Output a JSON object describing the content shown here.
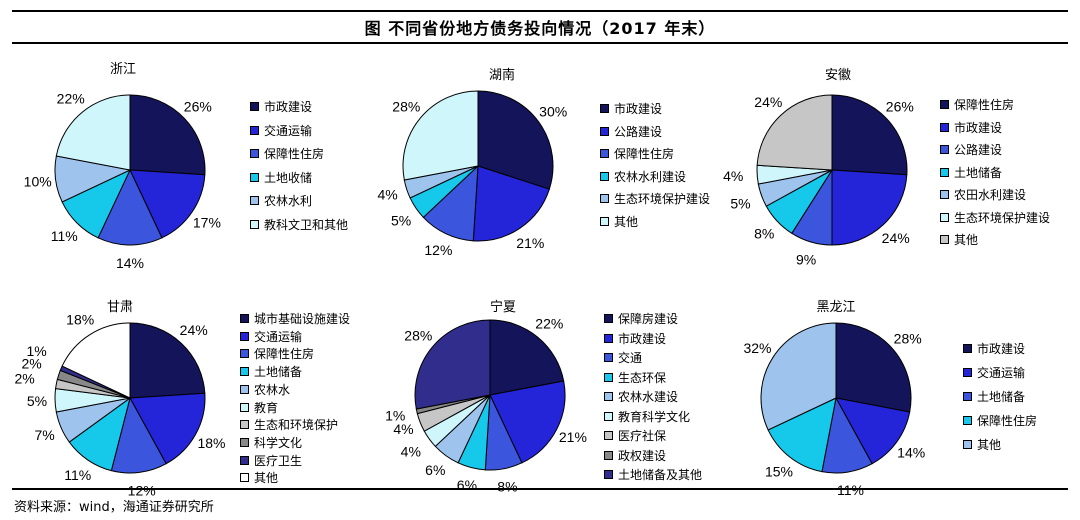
{
  "title": "图  不同省份地方债务投向情况（2017 年末）",
  "source": "资料来源：wind，海通证券研究所",
  "palette": {
    "navy": "#14145a",
    "blue": "#2424d8",
    "royal": "#3b55dc",
    "cyan": "#16c8ea",
    "lightblue": "#9ec4ee",
    "palecyan": "#cff6fb",
    "gray": "#c6c6c6",
    "darkgray": "#888888",
    "purple": "#302d8c",
    "white": "#ffffff"
  },
  "chart_data": [
    {
      "type": "pie",
      "title": "浙江",
      "categories": [
        "市政建设",
        "交通运输",
        "保障性住房",
        "土地收储",
        "农林水利",
        "教科文卫和其他"
      ],
      "values": [
        26,
        17,
        14,
        11,
        10,
        22
      ],
      "labels": [
        "26%",
        "17%",
        "14%",
        "11%",
        "10%",
        "22%"
      ],
      "colors": [
        "navy",
        "blue",
        "royal",
        "cyan",
        "lightblue",
        "palecyan"
      ]
    },
    {
      "type": "pie",
      "title": "湖南",
      "categories": [
        "市政建设",
        "公路建设",
        "保障性住房",
        "农林水利建设",
        "生态环境保护建设",
        "其他"
      ],
      "values": [
        30,
        21,
        12,
        5,
        4,
        28
      ],
      "labels": [
        "30%",
        "21%",
        "12%",
        "5%",
        "4%",
        "28%"
      ],
      "colors": [
        "navy",
        "blue",
        "royal",
        "cyan",
        "lightblue",
        "palecyan"
      ]
    },
    {
      "type": "pie",
      "title": "安徽",
      "categories": [
        "保障性住房",
        "市政建设",
        "公路建设",
        "土地储备",
        "农田水利建设",
        "生态环境保护建设",
        "其他"
      ],
      "values": [
        26,
        24,
        9,
        8,
        5,
        4,
        24
      ],
      "labels": [
        "26%",
        "24%",
        "9%",
        "8%",
        "5%",
        "4%",
        "24%"
      ],
      "colors": [
        "navy",
        "blue",
        "royal",
        "cyan",
        "lightblue",
        "palecyan",
        "gray"
      ]
    },
    {
      "type": "pie",
      "title": "甘肃",
      "categories": [
        "城市基础设施建设",
        "交通运输",
        "保障性住房",
        "土地储备",
        "农林水",
        "教育",
        "生态和环境保护",
        "科学文化",
        "医疗卫生",
        "其他"
      ],
      "values": [
        24,
        18,
        12,
        11,
        7,
        5,
        2,
        2,
        1,
        18
      ],
      "labels": [
        "24%",
        "18%",
        "12%",
        "11%",
        "7%",
        "5%",
        "2%",
        "2%",
        "1%",
        "18%"
      ],
      "colors": [
        "navy",
        "blue",
        "royal",
        "cyan",
        "lightblue",
        "palecyan",
        "gray",
        "darkgray",
        "purple",
        "white"
      ]
    },
    {
      "type": "pie",
      "title": "宁夏",
      "categories": [
        "保障房建设",
        "市政建设",
        "交通",
        "生态环保",
        "农林水建设",
        "教育科学文化",
        "医疗社保",
        "政权建设",
        "土地储备及其他"
      ],
      "values": [
        22,
        21,
        8,
        6,
        6,
        4,
        4,
        1,
        28
      ],
      "labels": [
        "22%",
        "21%",
        "8%",
        "6%",
        "6%",
        "4%",
        "4%",
        "1%",
        "28%"
      ],
      "colors": [
        "navy",
        "blue",
        "royal",
        "cyan",
        "lightblue",
        "palecyan",
        "gray",
        "darkgray",
        "purple"
      ]
    },
    {
      "type": "pie",
      "title": "黑龙江",
      "categories": [
        "市政建设",
        "交通运输",
        "土地储备",
        "保障性住房",
        "其他"
      ],
      "values": [
        28,
        14,
        11,
        15,
        32
      ],
      "labels": [
        "28%",
        "14%",
        "11%",
        "15%",
        "32%"
      ],
      "colors": [
        "navy",
        "blue",
        "royal",
        "cyan",
        "lightblue"
      ]
    }
  ]
}
